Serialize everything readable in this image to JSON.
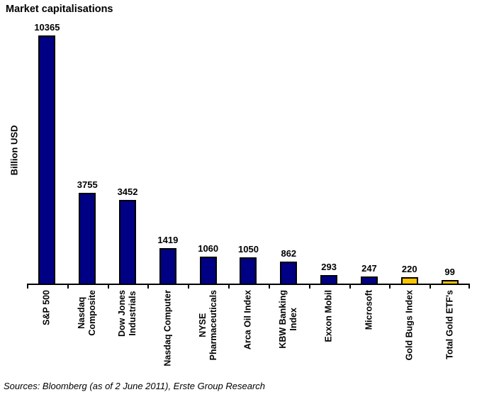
{
  "page": {
    "source_note": "Sources: Bloomberg (as of 2 June 2011), Erste Group Research"
  },
  "chart_data": {
    "type": "bar",
    "title": "Market capitalisations",
    "ylabel": "Billion USD",
    "xlabel": "",
    "categories": [
      "S&P 500",
      "Nasdaq\nComposite",
      "Dow Jones\nIndustrials",
      "Nasdaq Computer",
      "NYSE\nPharmaceuticals",
      "Arca Oil Index",
      "KBW Banking\nIndex",
      "Exxon Mobil",
      "Microsoft",
      "Gold Bugs Index",
      "Total Gold ETF's"
    ],
    "values": [
      10365,
      3755,
      3452,
      1419,
      1060,
      1050,
      862,
      293,
      247,
      220,
      99
    ],
    "data_labels": [
      "10365",
      "3755",
      "3452",
      "1419",
      "1060",
      "1050",
      "862",
      "293",
      "247",
      "220",
      "99"
    ],
    "bar_colors": [
      "#000084",
      "#000084",
      "#000084",
      "#000084",
      "#000084",
      "#000084",
      "#000084",
      "#000084",
      "#000084",
      "#FFC600",
      "#FFC600"
    ],
    "bar_border_color": "#000000",
    "axis_color": "#000000",
    "ylim": [
      0,
      10365
    ],
    "grid": false,
    "legend": false
  }
}
